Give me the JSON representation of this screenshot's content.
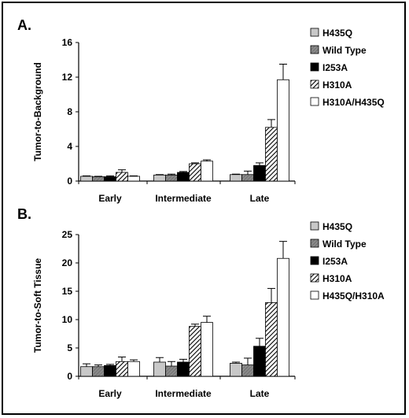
{
  "patterns": {
    "H435Q": {
      "fill": "#c8c8c8",
      "hatch": "none"
    },
    "Wild Type": {
      "fill": "#8a8a8a",
      "hatch": "dense"
    },
    "I253A": {
      "fill": "#000000",
      "hatch": "none"
    },
    "H310A": {
      "fill": "#ffffff",
      "hatch": "diag"
    },
    "H310A/H435Q": {
      "fill": "#ffffff",
      "hatch": "none"
    },
    "H435Q/H310A": {
      "fill": "#ffffff",
      "hatch": "none"
    }
  },
  "chart_data": [
    {
      "type": "bar",
      "panel_label": "A.",
      "ylabel": "Tumor-to-Background",
      "ylim": [
        0,
        16
      ],
      "yticks": [
        0,
        4,
        8,
        12,
        16
      ],
      "categories": [
        "Early",
        "Intermediate",
        "Late"
      ],
      "series": [
        {
          "name": "H435Q",
          "values": [
            0.55,
            0.7,
            0.75
          ],
          "errors": [
            0.05,
            0.05,
            0.05
          ]
        },
        {
          "name": "Wild Type",
          "values": [
            0.5,
            0.7,
            0.75
          ],
          "errors": [
            0.05,
            0.1,
            0.4
          ]
        },
        {
          "name": "I253A",
          "values": [
            0.5,
            1.0,
            1.8
          ],
          "errors": [
            0.1,
            0.1,
            0.3
          ]
        },
        {
          "name": "H310A",
          "values": [
            1.0,
            2.0,
            6.2
          ],
          "errors": [
            0.3,
            0.1,
            0.9
          ]
        },
        {
          "name": "H310A/H435Q",
          "values": [
            0.55,
            2.3,
            11.7
          ],
          "errors": [
            0.05,
            0.15,
            1.8
          ]
        }
      ]
    },
    {
      "type": "bar",
      "panel_label": "B.",
      "ylabel": "Tumor-to-Soft Tissue",
      "ylim": [
        0,
        25
      ],
      "yticks": [
        0,
        5,
        10,
        15,
        20,
        25
      ],
      "categories": [
        "Early",
        "Intermediate",
        "Late"
      ],
      "series": [
        {
          "name": "H435Q",
          "values": [
            1.7,
            2.5,
            2.3
          ],
          "errors": [
            0.5,
            0.8,
            0.2
          ]
        },
        {
          "name": "Wild Type",
          "values": [
            1.7,
            1.8,
            2.0
          ],
          "errors": [
            0.3,
            0.8,
            1.2
          ]
        },
        {
          "name": "I253A",
          "values": [
            1.9,
            2.5,
            5.3
          ],
          "errors": [
            0.2,
            0.5,
            1.4
          ]
        },
        {
          "name": "H310A",
          "values": [
            2.6,
            8.8,
            13.0
          ],
          "errors": [
            0.8,
            0.4,
            2.5
          ]
        },
        {
          "name": "H435Q/H310A",
          "values": [
            2.6,
            9.5,
            20.8
          ],
          "errors": [
            0.3,
            1.1,
            3.0
          ]
        }
      ]
    }
  ]
}
